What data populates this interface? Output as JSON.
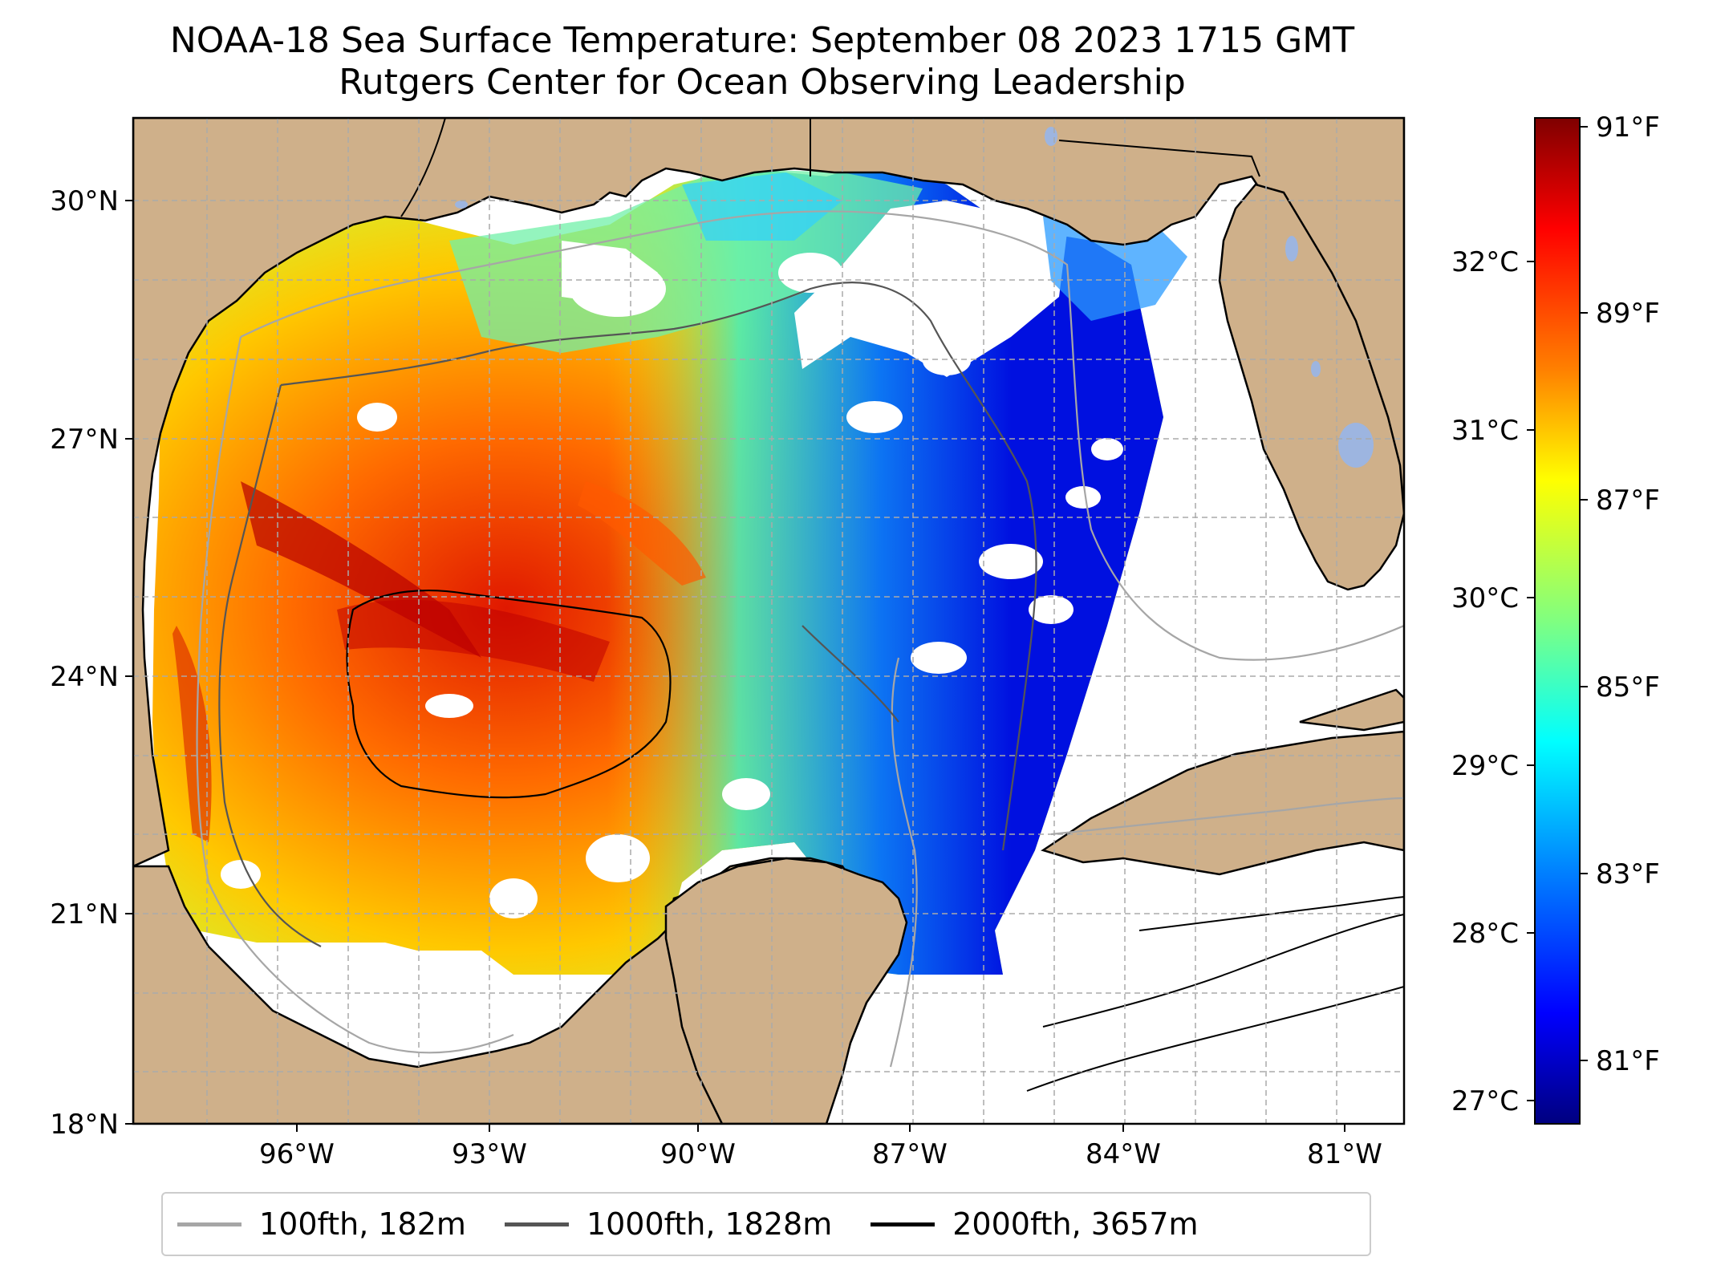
{
  "title": {
    "line1": "NOAA-18 Sea Surface Temperature: September 08 2023 1715 GMT",
    "line2": "Rutgers Center for Ocean Observing Leadership"
  },
  "map": {
    "latitude_labels": [
      "30°N",
      "27°N",
      "24°N",
      "21°N",
      "18°N"
    ],
    "longitude_labels": [
      "96°W",
      "93°W",
      "90°W",
      "87°W",
      "84°W",
      "81°W"
    ],
    "gridlines": "dashed",
    "land_color": "#cfb08a",
    "water_body_color": "#9db5e0"
  },
  "colorbar": {
    "colormap": "jet",
    "celsius_labels": [
      "32°C",
      "31°C",
      "30°C",
      "29°C",
      "28°C",
      "27°C"
    ],
    "fahrenheit_labels": [
      "91°F",
      "89°F",
      "87°F",
      "85°F",
      "83°F",
      "81°F"
    ],
    "colors": [
      "#7f0000",
      "#ff0000",
      "#ff8000",
      "#ffff00",
      "#80ff80",
      "#00ffff",
      "#0080ff",
      "#0000ff",
      "#00007f"
    ]
  },
  "legend": {
    "items": [
      {
        "label": "100fth, 182m",
        "color": "#a6a6a6"
      },
      {
        "label": "1000fth, 1828m",
        "color": "#555555"
      },
      {
        "label": "2000fth, 3657m",
        "color": "#000000"
      }
    ]
  }
}
